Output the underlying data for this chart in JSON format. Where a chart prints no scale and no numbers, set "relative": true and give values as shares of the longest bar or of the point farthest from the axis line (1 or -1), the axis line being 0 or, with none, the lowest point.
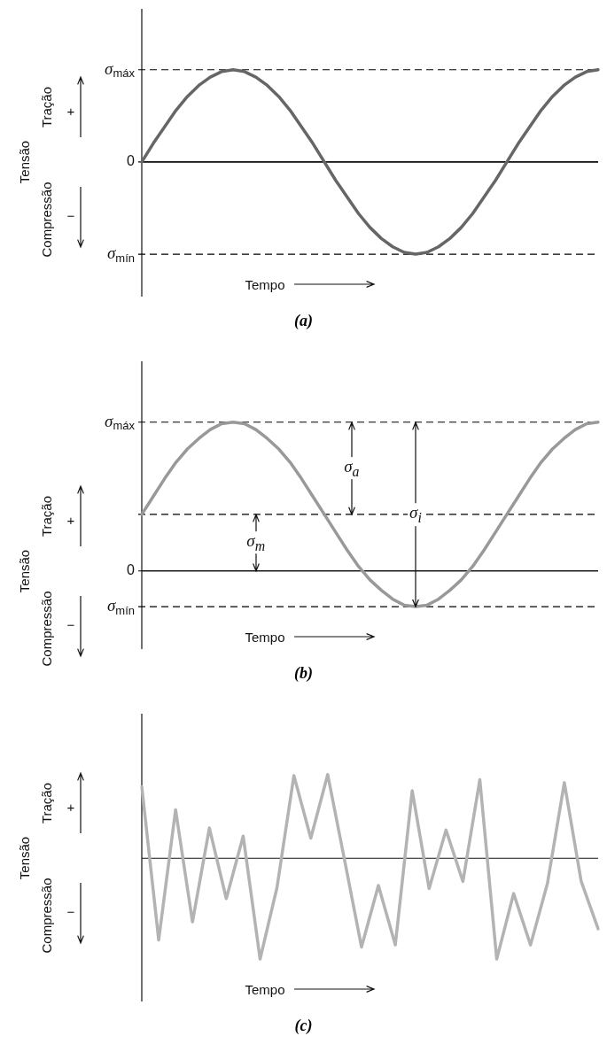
{
  "chart_data": [
    {
      "type": "line",
      "title": "(a)",
      "xlabel": "Tempo",
      "ylabel": "Tensão",
      "relative": true,
      "tick_labels": false,
      "marker": "none",
      "categories": [
        null,
        null,
        null,
        null,
        null,
        null,
        null,
        null,
        null,
        null,
        null,
        null,
        null,
        null,
        null,
        null,
        null,
        null,
        null,
        null,
        null,
        null,
        null,
        null,
        null,
        null,
        null,
        null,
        null,
        null,
        null,
        null,
        null,
        null,
        null,
        null,
        null,
        null,
        null,
        null,
        null
      ],
      "series": [
        {
          "color": "#666666",
          "values": [
            0,
            0.2,
            0.38,
            0.56,
            0.71,
            0.83,
            0.92,
            0.98,
            1,
            0.98,
            0.92,
            0.83,
            0.71,
            0.56,
            0.38,
            0.2,
            0,
            -0.2,
            -0.38,
            -0.56,
            -0.71,
            -0.83,
            -0.92,
            -0.98,
            -1,
            -0.98,
            -0.92,
            -0.83,
            -0.71,
            -0.56,
            -0.38,
            -0.2,
            0,
            0.2,
            0.38,
            0.56,
            0.71,
            0.83,
            0.92,
            0.98,
            1
          ]
        }
      ],
      "ref_lines": [
        {
          "axis": "y",
          "value": 1,
          "label": "σ$_{máx}$",
          "color": "#000000",
          "line_style": "dashed"
        },
        {
          "axis": "y",
          "value": 0,
          "label": "0",
          "color": "#000000",
          "line_style": "solid"
        },
        {
          "axis": "y",
          "value": -1,
          "label": "σ$_{mín}$",
          "color": "#000000",
          "line_style": "dashed"
        }
      ],
      "annotations": [
        "Tração",
        "+",
        "Compressão",
        "−"
      ]
    },
    {
      "type": "line",
      "title": "(b)",
      "xlabel": "Tempo",
      "ylabel": "Tensão",
      "relative": true,
      "tick_labels": false,
      "marker": "none",
      "categories": [
        null,
        null,
        null,
        null,
        null,
        null,
        null,
        null,
        null,
        null,
        null,
        null,
        null,
        null,
        null,
        null,
        null,
        null,
        null,
        null,
        null,
        null,
        null,
        null,
        null,
        null,
        null,
        null,
        null,
        null,
        null,
        null,
        null,
        null,
        null,
        null,
        null,
        null,
        null,
        null,
        null
      ],
      "series": [
        {
          "color": "#999999",
          "values": [
            0.38,
            0.5,
            0.62,
            0.73,
            0.82,
            0.89,
            0.95,
            0.99,
            1,
            0.99,
            0.95,
            0.89,
            0.82,
            0.73,
            0.62,
            0.5,
            0.38,
            0.26,
            0.14,
            0.03,
            -0.06,
            -0.13,
            -0.19,
            -0.23,
            -0.24,
            -0.23,
            -0.19,
            -0.13,
            -0.06,
            0.03,
            0.14,
            0.26,
            0.38,
            0.5,
            0.62,
            0.73,
            0.82,
            0.89,
            0.95,
            0.99,
            1
          ]
        }
      ],
      "ref_lines": [
        {
          "axis": "y",
          "value": 1,
          "label": "σ$_{máx}$",
          "color": "#000000",
          "line_style": "dashed"
        },
        {
          "axis": "y",
          "value": 0.38,
          "color": "#000000",
          "line_style": "dashed"
        },
        {
          "axis": "y",
          "value": 0,
          "label": "0",
          "color": "#000000",
          "line_style": "solid"
        },
        {
          "axis": "y",
          "value": -0.24,
          "label": "σ$_{mín}$",
          "color": "#000000",
          "line_style": "dashed"
        }
      ],
      "annotations": [
        "Tração",
        "+",
        "Compressão",
        "−",
        "σ$_{a}$",
        "σ$_{m}$",
        "σ$_{i}$"
      ]
    },
    {
      "type": "line",
      "title": "(c)",
      "xlabel": "Tempo",
      "ylabel": "Tensão",
      "relative": true,
      "tick_labels": false,
      "marker": "none",
      "categories": [
        null,
        null,
        null,
        null,
        null,
        null,
        null,
        null,
        null,
        null,
        null,
        null,
        null,
        null,
        null,
        null,
        null,
        null,
        null,
        null,
        null,
        null,
        null,
        null,
        null,
        null,
        null,
        null
      ],
      "series": [
        {
          "color": "#b3b3b3",
          "values": [
            0.71,
            -0.81,
            0.48,
            -0.63,
            0.3,
            -0.4,
            0.22,
            -1,
            -0.29,
            0.82,
            0.2,
            0.83,
            -0.02,
            -0.88,
            -0.27,
            -0.86,
            0.67,
            -0.3,
            0.28,
            -0.23,
            0.78,
            -1,
            -0.35,
            -0.86,
            -0.25,
            0.75,
            -0.23,
            -0.7
          ]
        }
      ],
      "annotations": [
        "Tração",
        "+",
        "Compressão",
        "−"
      ]
    }
  ]
}
